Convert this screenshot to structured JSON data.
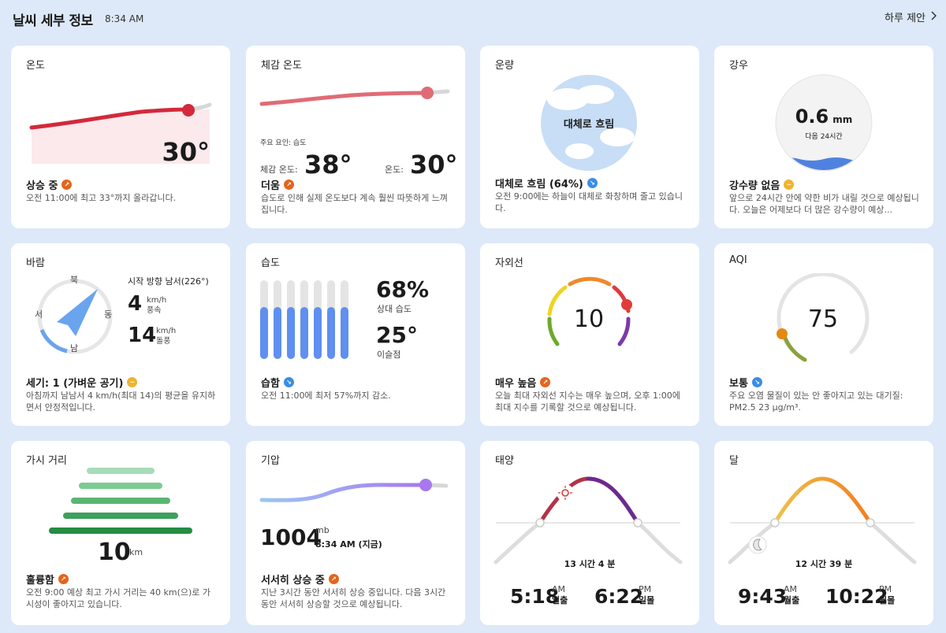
{
  "header": {
    "title": "날씨 세부 정보",
    "time": "8:34 AM",
    "daily_link": "하루 제안",
    "chevron": "chevron-right-icon"
  },
  "temp": {
    "title": "온도",
    "value": "30°",
    "status": "상승 중",
    "desc": "오전 11:00에 최고 33°까지 올라갑니다."
  },
  "feels": {
    "title": "체감 온도",
    "factor": "주요 요인: 습도",
    "feels_label": "체감 온도:",
    "feels_value": "38°",
    "temp_label": "온도:",
    "temp_value": "30°",
    "status": "더움",
    "desc": "습도로 인해 실제 온도보다 계속 훨씬 따뜻하게 느껴집니다."
  },
  "cloud": {
    "title": "운량",
    "center": "대체로 흐림",
    "status": "대체로 흐림 (64%)",
    "percent": 64,
    "desc": "오전 9:00에는 하늘이 대체로 화창하며 줄고 있습니다."
  },
  "rain": {
    "title": "강우",
    "value": "0.6",
    "unit": "mm",
    "period": "다음 24시간",
    "status": "강수량 없음",
    "desc": "앞으로 24시간 안에 약한 비가 내릴 것으로 예상됩니다. 오늘은 어제보다 더 많은 강수량이 예상..."
  },
  "wind": {
    "title": "바람",
    "dir_n": "북",
    "dir_e": "동",
    "dir_s": "남",
    "dir_w": "서",
    "from": "시작 방향 남서(226°)",
    "speed": "4",
    "speed_unit": "km/h",
    "speed_label": "풍속",
    "gust": "14",
    "gust_unit": "km/h",
    "gust_label": "돌풍",
    "status": "세기: 1 (가벼운 공기)",
    "desc": "아침까지 남남서 4 km/h(최대 14)의 평균을 유지하면서 안정적입니다."
  },
  "humidity": {
    "title": "습도",
    "value": "68%",
    "label": "상대 습도",
    "dew": "25°",
    "dew_label": "이슬점",
    "status": "습함",
    "desc": "오전 11:00에 최저 57%까지 감소.",
    "bars": [
      0.66,
      0.66,
      0.66,
      0.66,
      0.66,
      0.66,
      0.66
    ]
  },
  "uv": {
    "title": "자외선",
    "value": "10",
    "status": "매우 높음",
    "desc": "오늘 최대 자외선 지수는 매우 높으며, 오후 1:00에 최대 지수를 기록할 것으로 예상됩니다."
  },
  "aqi": {
    "title": "AQI",
    "value": "75",
    "status": "보통",
    "desc": "주요 오염 물질이 있는 안 좋아지고 있는 대기질: PM2.5 23 μg/m³."
  },
  "visibility": {
    "title": "가시 거리",
    "value": "10",
    "unit": "km",
    "status": "훌륭함",
    "desc": "오전 9:00 예상 최고 가시 거리는 40 km(으)로 가시성이 좋아지고 있습니다."
  },
  "pressure": {
    "title": "기압",
    "value": "1004",
    "unit": "mb",
    "time": "8:34 AM (지금)",
    "status": "서서히 상승 중",
    "desc": "지난 3시간 동안 서서히 상승 중입니다. 다음 3시간 동안 서서히 상승할 것으로 예상됩니다."
  },
  "sun": {
    "title": "태양",
    "duration": "13 시간 4 분",
    "rise": "5:18",
    "rise_ampm": "AM",
    "rise_label": "일출",
    "set": "6:22",
    "set_ampm": "PM",
    "set_label": "일몰"
  },
  "moon": {
    "title": "달",
    "duration": "12 시간 39 분",
    "rise": "9:43",
    "rise_ampm": "AM",
    "rise_label": "월출",
    "set": "10:22",
    "set_ampm": "PM",
    "set_label": "월몰"
  }
}
